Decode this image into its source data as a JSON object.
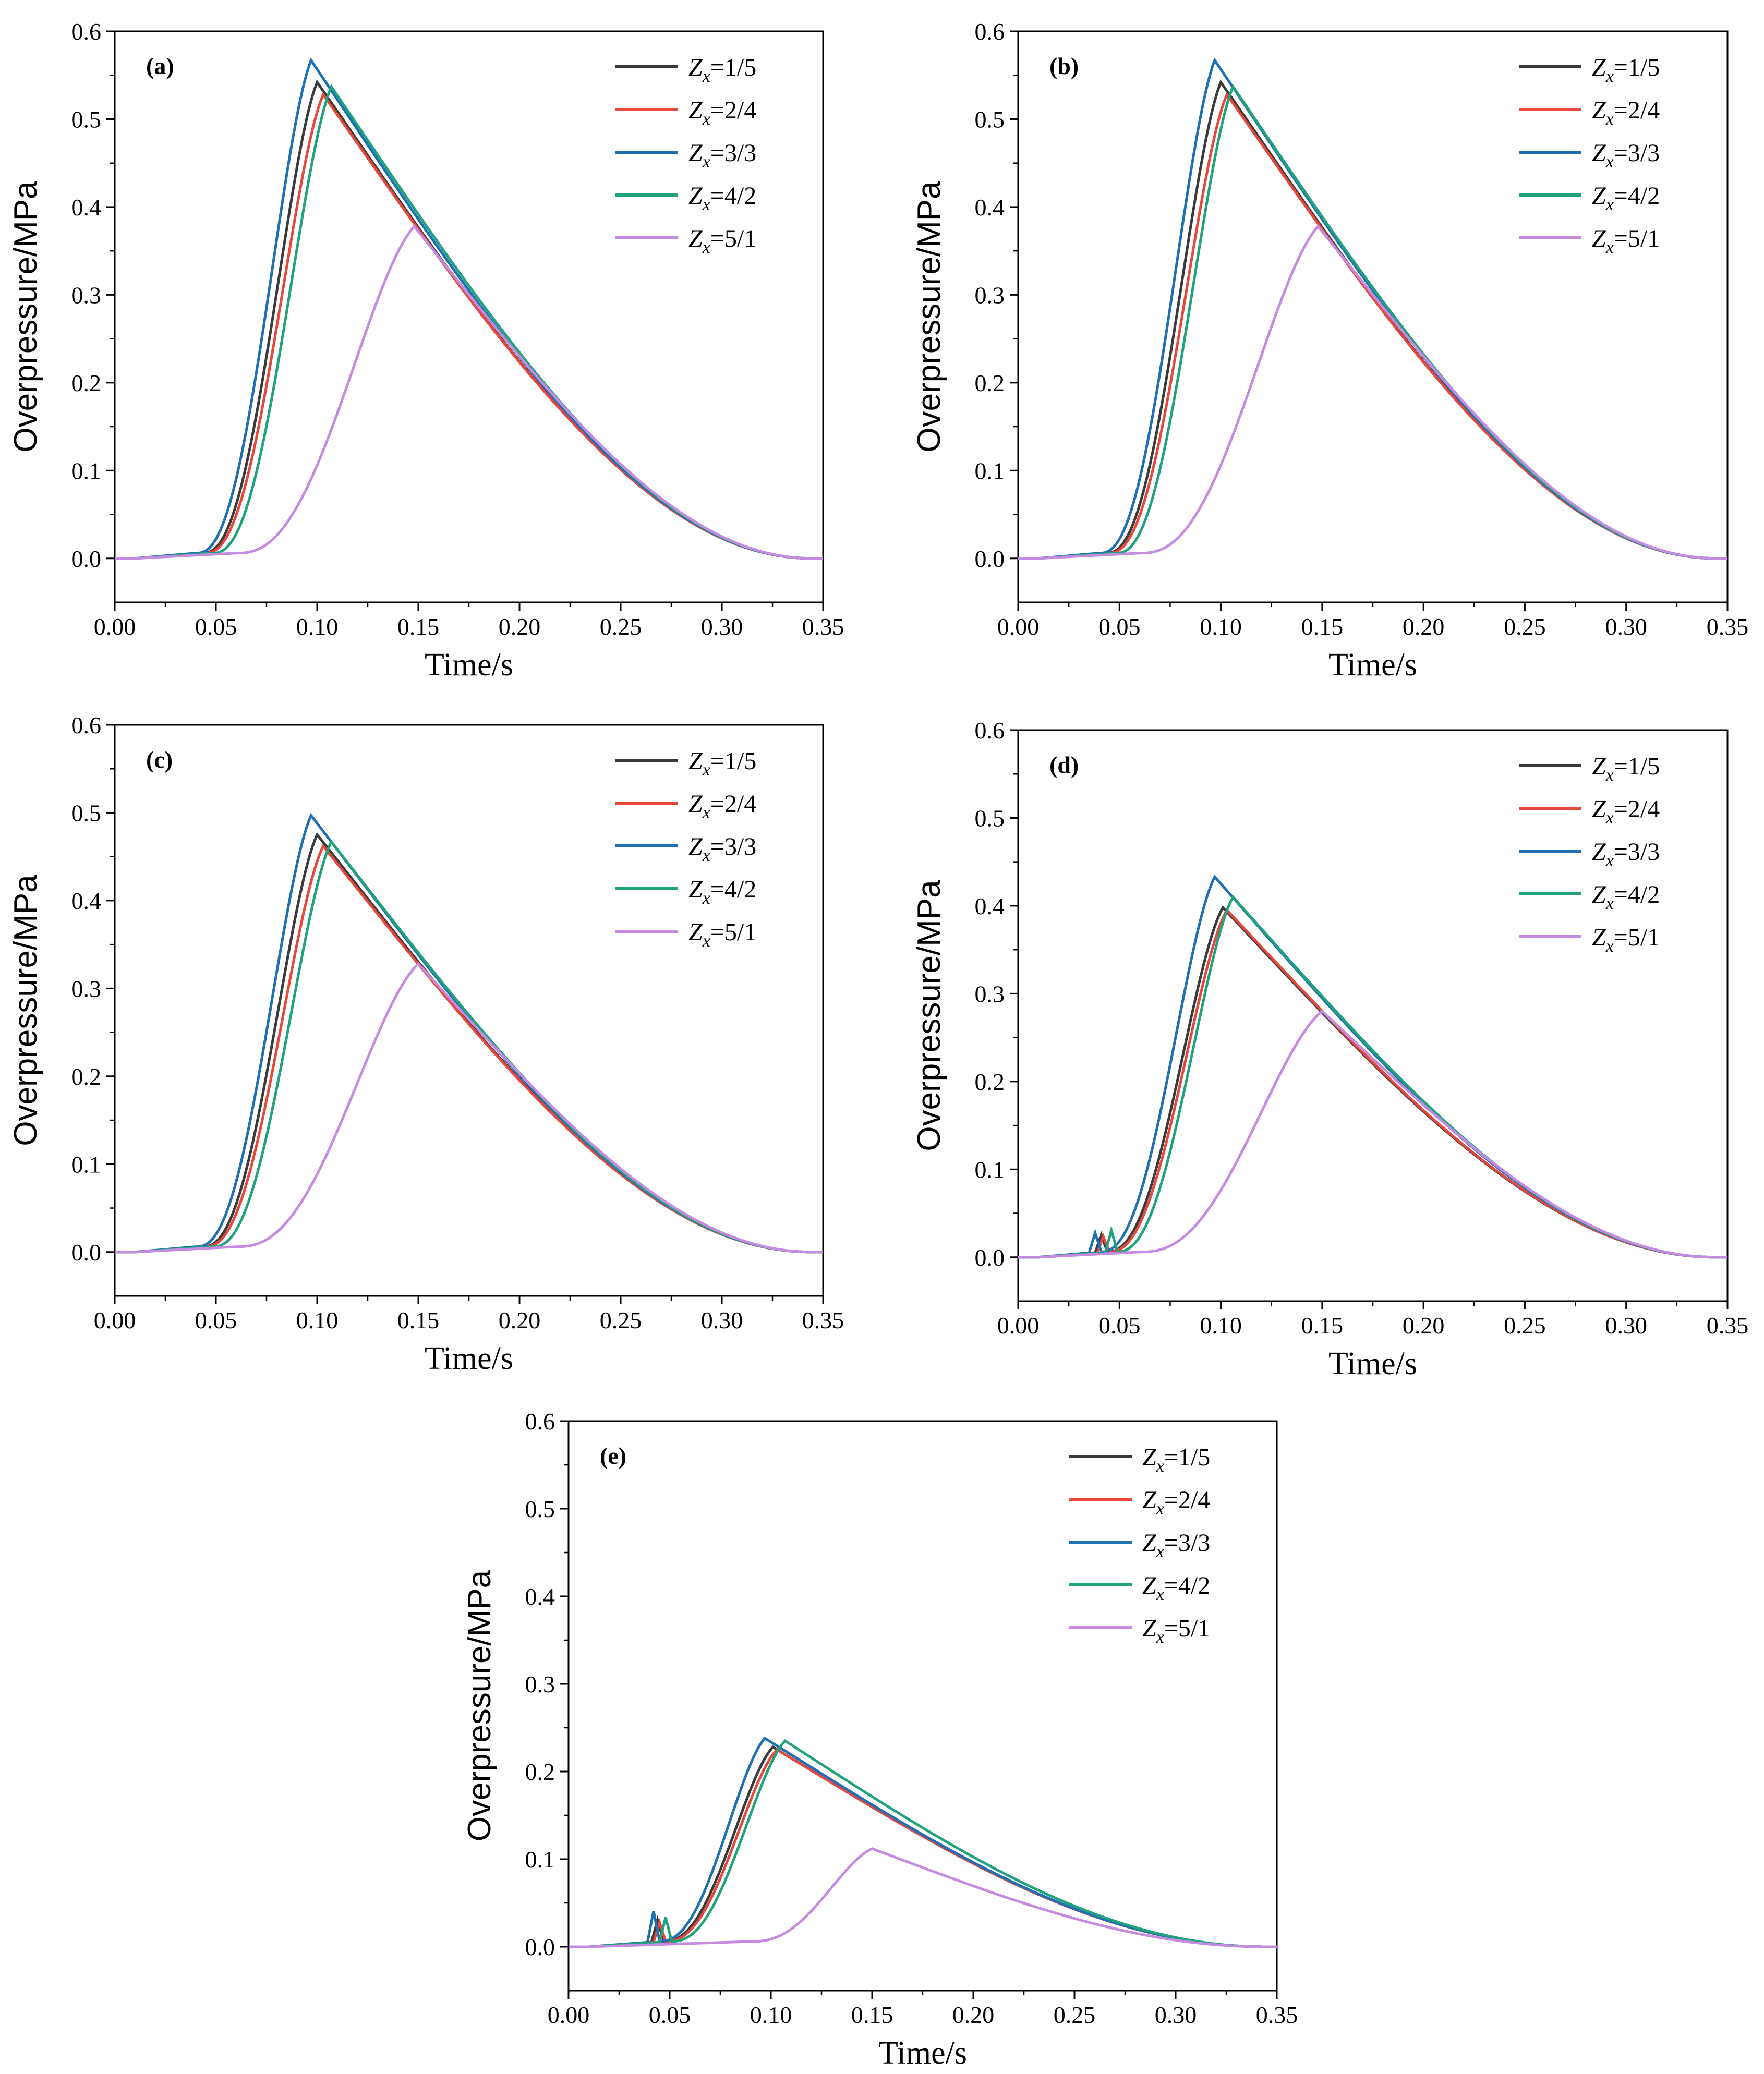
{
  "figure": {
    "xlabel": "Time/s",
    "ylabel": "Overpressure/MPa",
    "xlim": [
      0,
      0.35
    ],
    "ylim": [
      -0.05,
      0.6
    ],
    "x_ticks": [
      "0.00",
      "0.05",
      "0.10",
      "0.15",
      "0.20",
      "0.25",
      "0.30",
      "0.35"
    ],
    "y_ticks": [
      "0.0",
      "0.1",
      "0.2",
      "0.3",
      "0.4",
      "0.5",
      "0.6"
    ],
    "colors": {
      "Zx=1/5": "#3a3a3a",
      "Zx=2/4": "#e8473c",
      "Zx=3/3": "#1f6fb4",
      "Zx=4/2": "#20a37c",
      "Zx=5/1": "#c48be0"
    }
  },
  "chart_data": [
    {
      "type": "line",
      "panel_label": "(a)",
      "xlabel": "Time/s",
      "ylabel": "Overpressure/MPa",
      "xlim": [
        0,
        0.35
      ],
      "ylim": [
        -0.05,
        0.6
      ],
      "series": [
        {
          "name": "Zx=1/5",
          "legend_main": "Z",
          "legend_sub": "x",
          "legend_rest": "=1/5",
          "peak_t": 0.1,
          "peak_p": 0.542,
          "start_t": 0.043
        },
        {
          "name": "Zx=2/4",
          "legend_main": "Z",
          "legend_sub": "x",
          "legend_rest": "=2/4",
          "peak_t": 0.103,
          "peak_p": 0.528,
          "start_t": 0.044
        },
        {
          "name": "Zx=3/3",
          "legend_main": "Z",
          "legend_sub": "x",
          "legend_rest": "=3/3",
          "peak_t": 0.097,
          "peak_p": 0.567,
          "start_t": 0.04
        },
        {
          "name": "Zx=4/2",
          "legend_main": "Z",
          "legend_sub": "x",
          "legend_rest": "=4/2",
          "peak_t": 0.107,
          "peak_p": 0.537,
          "start_t": 0.048
        },
        {
          "name": "Zx=5/1",
          "legend_main": "Z",
          "legend_sub": "x",
          "legend_rest": "=5/1",
          "peak_t": 0.148,
          "peak_p": 0.378,
          "start_t": 0.06
        }
      ]
    },
    {
      "type": "line",
      "panel_label": "(b)",
      "xlabel": "Time/s",
      "ylabel": "Overpressure/MPa",
      "xlim": [
        0,
        0.35
      ],
      "ylim": [
        -0.05,
        0.6
      ],
      "series": [
        {
          "name": "Zx=1/5",
          "legend_main": "Z",
          "legend_sub": "x",
          "legend_rest": "=1/5",
          "peak_t": 0.1,
          "peak_p": 0.542,
          "start_t": 0.043
        },
        {
          "name": "Zx=2/4",
          "legend_main": "Z",
          "legend_sub": "x",
          "legend_rest": "=2/4",
          "peak_t": 0.103,
          "peak_p": 0.528,
          "start_t": 0.044
        },
        {
          "name": "Zx=3/3",
          "legend_main": "Z",
          "legend_sub": "x",
          "legend_rest": "=3/3",
          "peak_t": 0.097,
          "peak_p": 0.567,
          "start_t": 0.04
        },
        {
          "name": "Zx=4/2",
          "legend_main": "Z",
          "legend_sub": "x",
          "legend_rest": "=4/2",
          "peak_t": 0.106,
          "peak_p": 0.537,
          "start_t": 0.048
        },
        {
          "name": "Zx=5/1",
          "legend_main": "Z",
          "legend_sub": "x",
          "legend_rest": "=5/1",
          "peak_t": 0.148,
          "peak_p": 0.378,
          "start_t": 0.06
        }
      ]
    },
    {
      "type": "line",
      "panel_label": "(c)",
      "xlabel": "Time/s",
      "ylabel": "Overpressure/MPa",
      "xlim": [
        0,
        0.35
      ],
      "ylim": [
        -0.05,
        0.6
      ],
      "series": [
        {
          "name": "Zx=1/5",
          "legend_main": "Z",
          "legend_sub": "x",
          "legend_rest": "=1/5",
          "peak_t": 0.1,
          "peak_p": 0.475,
          "start_t": 0.043
        },
        {
          "name": "Zx=2/4",
          "legend_main": "Z",
          "legend_sub": "x",
          "legend_rest": "=2/4",
          "peak_t": 0.103,
          "peak_p": 0.462,
          "start_t": 0.044
        },
        {
          "name": "Zx=3/3",
          "legend_main": "Z",
          "legend_sub": "x",
          "legend_rest": "=3/3",
          "peak_t": 0.097,
          "peak_p": 0.497,
          "start_t": 0.04
        },
        {
          "name": "Zx=4/2",
          "legend_main": "Z",
          "legend_sub": "x",
          "legend_rest": "=4/2",
          "peak_t": 0.107,
          "peak_p": 0.467,
          "start_t": 0.048
        },
        {
          "name": "Zx=5/1",
          "legend_main": "Z",
          "legend_sub": "x",
          "legend_rest": "=5/1",
          "peak_t": 0.15,
          "peak_p": 0.328,
          "start_t": 0.06
        }
      ]
    },
    {
      "type": "line",
      "panel_label": "(d)",
      "xlabel": "Time/s",
      "ylabel": "Overpressure/MPa",
      "xlim": [
        0,
        0.35
      ],
      "ylim": [
        -0.05,
        0.6
      ],
      "series": [
        {
          "name": "Zx=1/5",
          "legend_main": "Z",
          "legend_sub": "x",
          "legend_rest": "=1/5",
          "peak_t": 0.101,
          "peak_p": 0.398,
          "start_t": 0.043,
          "spike_p": 0.02
        },
        {
          "name": "Zx=2/4",
          "legend_main": "Z",
          "legend_sub": "x",
          "legend_rest": "=2/4",
          "peak_t": 0.103,
          "peak_p": 0.395,
          "start_t": 0.044,
          "spike_p": 0.018
        },
        {
          "name": "Zx=3/3",
          "legend_main": "Z",
          "legend_sub": "x",
          "legend_rest": "=3/3",
          "peak_t": 0.097,
          "peak_p": 0.433,
          "start_t": 0.04,
          "spike_p": 0.022
        },
        {
          "name": "Zx=4/2",
          "legend_main": "Z",
          "legend_sub": "x",
          "legend_rest": "=4/2",
          "peak_t": 0.106,
          "peak_p": 0.41,
          "start_t": 0.048,
          "spike_p": 0.025
        },
        {
          "name": "Zx=5/1",
          "legend_main": "Z",
          "legend_sub": "x",
          "legend_rest": "=5/1",
          "peak_t": 0.15,
          "peak_p": 0.28,
          "start_t": 0.06
        }
      ]
    },
    {
      "type": "line",
      "panel_label": "(e)",
      "xlabel": "Time/s",
      "ylabel": "Overpressure/MPa",
      "xlim": [
        0,
        0.35
      ],
      "ylim": [
        -0.05,
        0.6
      ],
      "series": [
        {
          "name": "Zx=1/5",
          "legend_main": "Z",
          "legend_sub": "x",
          "legend_rest": "=1/5",
          "peak_t": 0.101,
          "peak_p": 0.228,
          "start_t": 0.046,
          "spike_p": 0.025
        },
        {
          "name": "Zx=2/4",
          "legend_main": "Z",
          "legend_sub": "x",
          "legend_rest": "=2/4",
          "peak_t": 0.103,
          "peak_p": 0.225,
          "start_t": 0.047,
          "spike_p": 0.022
        },
        {
          "name": "Zx=3/3",
          "legend_main": "Z",
          "legend_sub": "x",
          "legend_rest": "=3/3",
          "peak_t": 0.097,
          "peak_p": 0.238,
          "start_t": 0.044,
          "spike_p": 0.035
        },
        {
          "name": "Zx=4/2",
          "legend_main": "Z",
          "legend_sub": "x",
          "legend_rest": "=4/2",
          "peak_t": 0.107,
          "peak_p": 0.235,
          "start_t": 0.05,
          "spike_p": 0.028
        },
        {
          "name": "Zx=5/1",
          "legend_main": "Z",
          "legend_sub": "x",
          "legend_rest": "=5/1",
          "peak_t": 0.15,
          "peak_p": 0.112,
          "start_t": 0.09
        }
      ]
    }
  ]
}
